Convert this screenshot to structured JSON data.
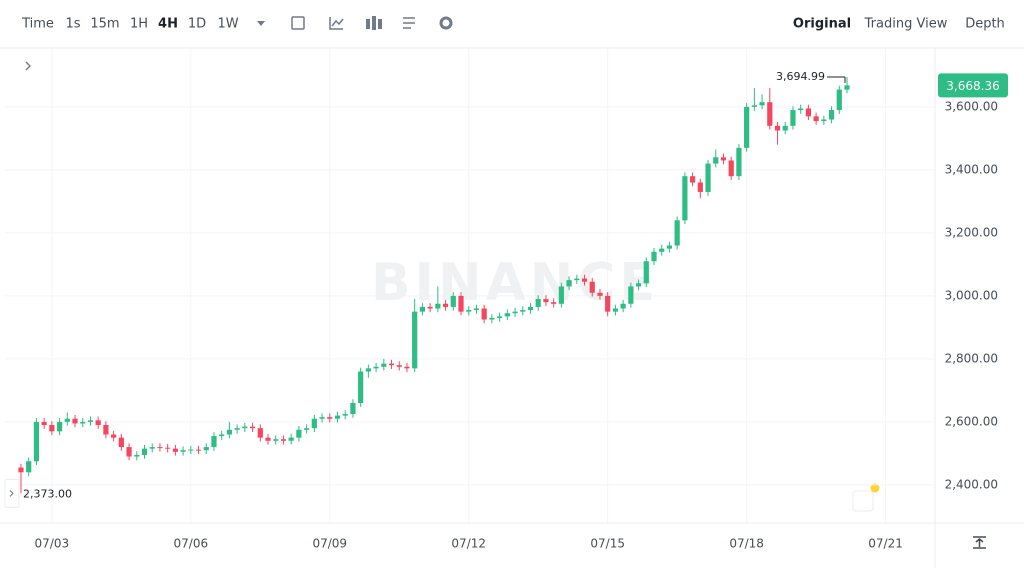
{
  "toolbar": {
    "intervals": [
      "Time",
      "1s",
      "15m",
      "1H",
      "4H",
      "1D",
      "1W"
    ],
    "views": [
      "Original",
      "Trading View",
      "Depth"
    ]
  },
  "watermark": "BINANCE",
  "chart_data": {
    "type": "candlestick",
    "up_color": "#2ebd85",
    "down_color": "#f6465d",
    "grid": true,
    "xlim": [
      -2.07,
      118.4
    ],
    "xticks": [
      {
        "value": 4,
        "label": "07/03"
      },
      {
        "value": 22,
        "label": "07/06"
      },
      {
        "value": 40,
        "label": "07/09"
      },
      {
        "value": 58,
        "label": "07/12"
      },
      {
        "value": 76,
        "label": "07/15"
      },
      {
        "value": 94,
        "label": "07/18"
      },
      {
        "value": 112,
        "label": "07/21"
      }
    ],
    "ylim": [
      2279,
      3787
    ],
    "yticks": [
      {
        "value": 2400,
        "label": "2,400.00"
      },
      {
        "value": 2600,
        "label": "2,600.00"
      },
      {
        "value": 2800,
        "label": "2,800.00"
      },
      {
        "value": 3000,
        "label": "3,000.00"
      },
      {
        "value": 3200,
        "label": "3,200.00"
      },
      {
        "value": 3400,
        "label": "3,400.00"
      },
      {
        "value": 3600,
        "label": "3,600.00"
      }
    ],
    "open": [
      2455,
      2440,
      2475,
      2600,
      2590,
      2570,
      2600,
      2610,
      2595,
      2600,
      2605,
      2590,
      2560,
      2550,
      2520,
      2490,
      2495,
      2515,
      2520,
      2518,
      2515,
      2505,
      2510,
      2512,
      2510,
      2520,
      2555,
      2560,
      2575,
      2580,
      2585,
      2580,
      2550,
      2540,
      2545,
      2540,
      2550,
      2575,
      2580,
      2610,
      2615,
      2610,
      2620,
      2625,
      2660,
      2760,
      2770,
      2775,
      2785,
      2780,
      2775,
      2770,
      2950,
      2965,
      2960,
      2975,
      2965,
      3000,
      2950,
      2955,
      2960,
      2925,
      2930,
      2935,
      2945,
      2950,
      2955,
      2965,
      2990,
      2980,
      2975,
      3030,
      3050,
      3055,
      3045,
      3010,
      3000,
      2950,
      2960,
      2975,
      3030,
      3040,
      3110,
      3140,
      3150,
      3160,
      3240,
      3380,
      3360,
      3330,
      3420,
      3440,
      3430,
      3380,
      3470,
      3600,
      3605,
      3615,
      3540,
      3525,
      3540,
      3590,
      3595,
      3570,
      3555,
      3560,
      3590,
      3655
    ],
    "high": [
      2467,
      2487,
      2612,
      2612,
      2602,
      2612,
      2630,
      2622,
      2612,
      2617,
      2617,
      2602,
      2572,
      2562,
      2532,
      2507,
      2527,
      2532,
      2532,
      2530,
      2527,
      2522,
      2524,
      2524,
      2532,
      2567,
      2572,
      2600,
      2592,
      2597,
      2597,
      2592,
      2562,
      2557,
      2557,
      2562,
      2587,
      2592,
      2622,
      2627,
      2627,
      2632,
      2637,
      2672,
      2772,
      2782,
      2787,
      2800,
      2797,
      2792,
      2787,
      2990,
      2977,
      2977,
      3030,
      2987,
      3012,
      3012,
      2967,
      2972,
      2972,
      2942,
      2947,
      2957,
      2962,
      2967,
      2977,
      3002,
      3002,
      2992,
      3042,
      3062,
      3067,
      3067,
      3057,
      3022,
      3012,
      2972,
      2987,
      3042,
      3052,
      3122,
      3152,
      3162,
      3172,
      3252,
      3392,
      3392,
      3372,
      3432,
      3465,
      3452,
      3442,
      3482,
      3612,
      3660,
      3640,
      3660,
      3552,
      3552,
      3602,
      3607,
      3607,
      3582,
      3572,
      3602,
      3667,
      3694.99
    ],
    "low": [
      2373,
      2428,
      2463,
      2578,
      2558,
      2558,
      2588,
      2583,
      2583,
      2588,
      2578,
      2548,
      2538,
      2508,
      2478,
      2478,
      2483,
      2503,
      2506,
      2503,
      2493,
      2493,
      2498,
      2498,
      2498,
      2508,
      2543,
      2548,
      2563,
      2568,
      2568,
      2538,
      2528,
      2528,
      2528,
      2528,
      2538,
      2563,
      2568,
      2598,
      2598,
      2598,
      2608,
      2613,
      2648,
      2740,
      2758,
      2763,
      2768,
      2763,
      2758,
      2758,
      2938,
      2948,
      2948,
      2953,
      2953,
      2938,
      2938,
      2943,
      2913,
      2913,
      2918,
      2923,
      2933,
      2938,
      2943,
      2953,
      2968,
      2963,
      2963,
      3018,
      3038,
      3033,
      2998,
      2988,
      2935,
      2938,
      2948,
      2963,
      3018,
      3028,
      3098,
      3128,
      3138,
      3148,
      3228,
      3348,
      3310,
      3318,
      3408,
      3418,
      3368,
      3368,
      3458,
      3588,
      3593,
      3528,
      3480,
      3513,
      3528,
      3578,
      3558,
      3543,
      3543,
      3548,
      3578,
      3643
    ],
    "close": [
      2440,
      2475,
      2600,
      2590,
      2570,
      2600,
      2610,
      2595,
      2600,
      2605,
      2590,
      2560,
      2550,
      2520,
      2490,
      2495,
      2515,
      2520,
      2518,
      2515,
      2505,
      2510,
      2512,
      2510,
      2520,
      2555,
      2560,
      2575,
      2580,
      2585,
      2580,
      2550,
      2540,
      2545,
      2540,
      2550,
      2575,
      2580,
      2610,
      2615,
      2610,
      2620,
      2625,
      2660,
      2760,
      2770,
      2775,
      2785,
      2780,
      2775,
      2770,
      2950,
      2965,
      2960,
      2975,
      2965,
      3000,
      2950,
      2955,
      2960,
      2925,
      2930,
      2935,
      2945,
      2950,
      2955,
      2965,
      2990,
      2980,
      2975,
      3030,
      3050,
      3055,
      3045,
      3010,
      3000,
      2950,
      2960,
      2975,
      3030,
      3040,
      3110,
      3140,
      3150,
      3160,
      3240,
      3380,
      3360,
      3330,
      3420,
      3440,
      3430,
      3380,
      3470,
      3600,
      3605,
      3615,
      3540,
      3525,
      3540,
      3590,
      3595,
      3570,
      3555,
      3560,
      3590,
      3655,
      3668.36
    ],
    "high_marker": {
      "value": 3694.99,
      "label": "3,694.99"
    },
    "low_marker": {
      "value": 2373,
      "label": "2,373.00"
    },
    "last_price": {
      "value": 3668.36,
      "label": "3,668.36"
    }
  }
}
